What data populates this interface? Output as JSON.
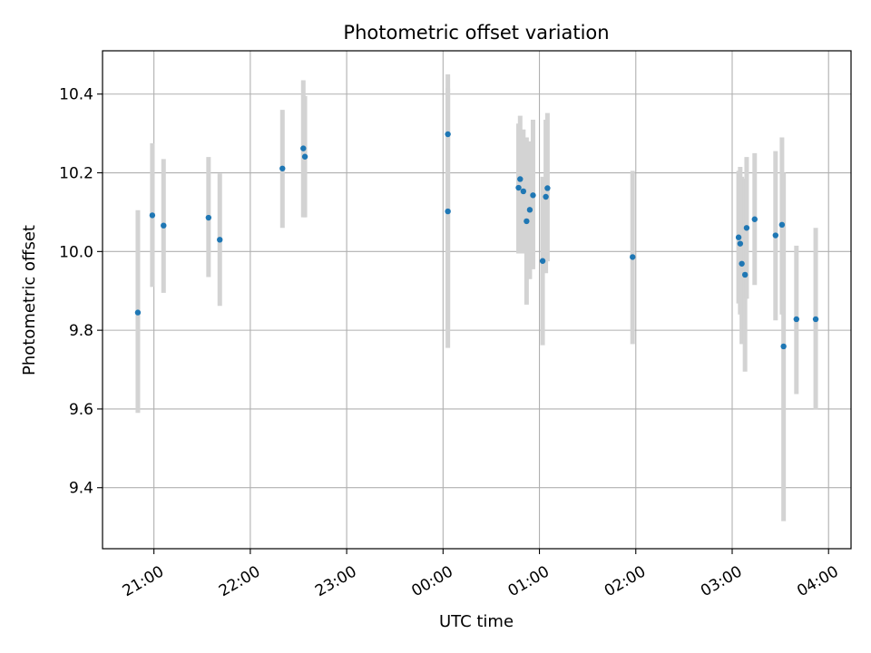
{
  "chart_data": {
    "type": "scatter",
    "title": "Photometric offset variation",
    "xlabel": "UTC time",
    "ylabel": "Photometric offset",
    "x_tick_labels": [
      "21:00",
      "22:00",
      "23:00",
      "00:00",
      "01:00",
      "02:00",
      "03:00",
      "04:00"
    ],
    "y_tick_labels": [
      "9.4",
      "9.6",
      "9.8",
      "10.0",
      "10.2",
      "10.4"
    ],
    "y_ticks": [
      9.4,
      9.6,
      9.8,
      10.0,
      10.2,
      10.4
    ],
    "xlim": [
      "20:28",
      "04:14"
    ],
    "ylim": [
      9.245,
      10.51
    ],
    "grid": true,
    "colors": {
      "point": "#1f77b4",
      "errorbar": "#d3d3d3",
      "grid": "#b0b0b0"
    },
    "points": [
      {
        "t": "20:50",
        "y": 9.845,
        "lo": 9.59,
        "hi": 10.105
      },
      {
        "t": "20:59",
        "y": 10.092,
        "lo": 9.91,
        "hi": 10.275
      },
      {
        "t": "21:06",
        "y": 10.066,
        "lo": 9.895,
        "hi": 10.235
      },
      {
        "t": "21:34",
        "y": 10.086,
        "lo": 9.935,
        "hi": 10.24
      },
      {
        "t": "21:41",
        "y": 10.03,
        "lo": 9.862,
        "hi": 10.198
      },
      {
        "t": "22:20",
        "y": 10.211,
        "lo": 10.06,
        "hi": 10.36
      },
      {
        "t": "22:33",
        "y": 10.262,
        "lo": 10.087,
        "hi": 10.435
      },
      {
        "t": "22:34",
        "y": 10.241,
        "lo": 10.087,
        "hi": 10.395
      },
      {
        "t": "00:03",
        "y": 10.298,
        "lo": 9.8,
        "hi": 10.45
      },
      {
        "t": "00:03",
        "y": 10.102,
        "lo": 9.755,
        "hi": 10.415
      },
      {
        "t": "00:47",
        "y": 10.162,
        "lo": 9.995,
        "hi": 10.325
      },
      {
        "t": "00:48",
        "y": 10.184,
        "lo": 9.995,
        "hi": 10.345
      },
      {
        "t": "00:50",
        "y": 10.153,
        "lo": 9.995,
        "hi": 10.31
      },
      {
        "t": "00:52",
        "y": 10.077,
        "lo": 9.865,
        "hi": 10.29
      },
      {
        "t": "00:54",
        "y": 10.106,
        "lo": 9.93,
        "hi": 10.28
      },
      {
        "t": "00:56",
        "y": 10.143,
        "lo": 9.955,
        "hi": 10.335
      },
      {
        "t": "01:02",
        "y": 9.976,
        "lo": 9.762,
        "hi": 10.19
      },
      {
        "t": "01:04",
        "y": 10.139,
        "lo": 9.945,
        "hi": 10.335
      },
      {
        "t": "01:05",
        "y": 10.161,
        "lo": 9.975,
        "hi": 10.352
      },
      {
        "t": "01:58",
        "y": 9.986,
        "lo": 9.765,
        "hi": 10.205
      },
      {
        "t": "03:04",
        "y": 10.036,
        "lo": 9.868,
        "hi": 10.205
      },
      {
        "t": "03:05",
        "y": 10.02,
        "lo": 9.84,
        "hi": 10.215
      },
      {
        "t": "03:06",
        "y": 9.969,
        "lo": 9.765,
        "hi": 10.19
      },
      {
        "t": "03:08",
        "y": 9.941,
        "lo": 9.695,
        "hi": 10.185
      },
      {
        "t": "03:09",
        "y": 10.06,
        "lo": 9.88,
        "hi": 10.24
      },
      {
        "t": "03:14",
        "y": 10.082,
        "lo": 9.915,
        "hi": 10.25
      },
      {
        "t": "03:27",
        "y": 10.041,
        "lo": 9.825,
        "hi": 10.255
      },
      {
        "t": "03:31",
        "y": 10.068,
        "lo": 9.84,
        "hi": 10.29
      },
      {
        "t": "03:32",
        "y": 9.759,
        "lo": 9.315,
        "hi": 10.2
      },
      {
        "t": "03:40",
        "y": 9.828,
        "lo": 9.638,
        "hi": 10.015
      },
      {
        "t": "03:52",
        "y": 9.828,
        "lo": 9.598,
        "hi": 10.06
      }
    ]
  }
}
